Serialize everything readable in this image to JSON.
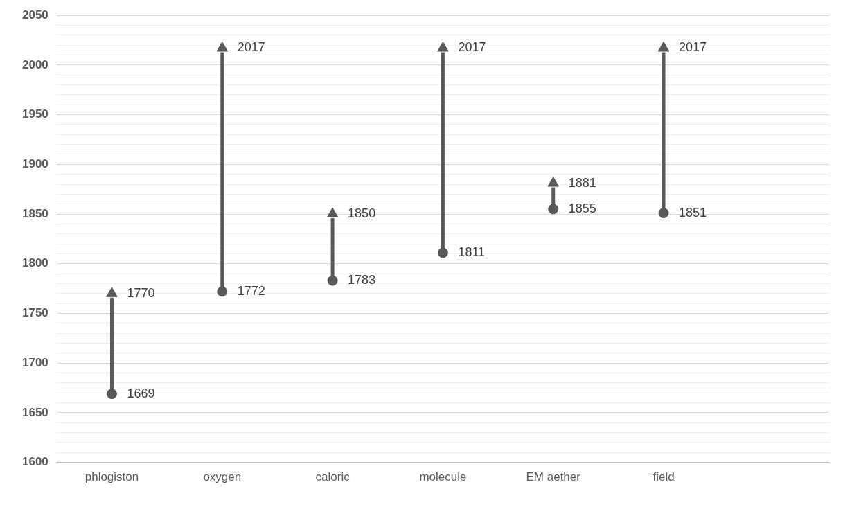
{
  "chart_data": {
    "type": "scatter",
    "categories": [
      "phlogiston",
      "oxygen",
      "caloric",
      "molecule",
      "EM aether",
      "field",
      null
    ],
    "series": [
      {
        "color": "#595959",
        "marker": "circle",
        "values": [
          1669,
          1772,
          1783,
          1811,
          1855,
          1851,
          null
        ]
      },
      {
        "color": "#595959",
        "marker": "triangle",
        "values": [
          1770,
          2017,
          1850,
          2017,
          1881,
          2017,
          null
        ]
      }
    ],
    "data_labels": true,
    "ylim": [
      1600,
      2050
    ],
    "yticks": [
      1600,
      {
        "value": 1610,
        "label": null
      },
      {
        "value": 1620,
        "label": null
      },
      {
        "value": 1630,
        "label": null
      },
      {
        "value": 1640,
        "label": null
      },
      1650,
      {
        "value": 1660,
        "label": null
      },
      {
        "value": 1670,
        "label": null
      },
      {
        "value": 1680,
        "label": null
      },
      {
        "value": 1690,
        "label": null
      },
      1700,
      {
        "value": 1710,
        "label": null
      },
      {
        "value": 1720,
        "label": null
      },
      {
        "value": 1730,
        "label": null
      },
      {
        "value": 1740,
        "label": null
      },
      1750,
      {
        "value": 1760,
        "label": null
      },
      {
        "value": 1770,
        "label": null
      },
      {
        "value": 1780,
        "label": null
      },
      {
        "value": 1790,
        "label": null
      },
      1800,
      {
        "value": 1810,
        "label": null
      },
      {
        "value": 1820,
        "label": null
      },
      {
        "value": 1830,
        "label": null
      },
      {
        "value": 1840,
        "label": null
      },
      1850,
      {
        "value": 1860,
        "label": null
      },
      {
        "value": 1870,
        "label": null
      },
      {
        "value": 1880,
        "label": null
      },
      {
        "value": 1890,
        "label": null
      },
      1900,
      {
        "value": 1910,
        "label": null
      },
      {
        "value": 1920,
        "label": null
      },
      {
        "value": 1930,
        "label": null
      },
      {
        "value": 1940,
        "label": null
      },
      1950,
      {
        "value": 1960,
        "label": null
      },
      {
        "value": 1970,
        "label": null
      },
      {
        "value": 1980,
        "label": null
      },
      {
        "value": 1990,
        "label": null
      },
      2000,
      {
        "value": 2010,
        "label": null
      },
      {
        "value": 2020,
        "label": null
      },
      {
        "value": 2030,
        "label": null
      },
      {
        "value": 2040,
        "label": null
      },
      2050
    ],
    "grid": true,
    "legend": false
  }
}
